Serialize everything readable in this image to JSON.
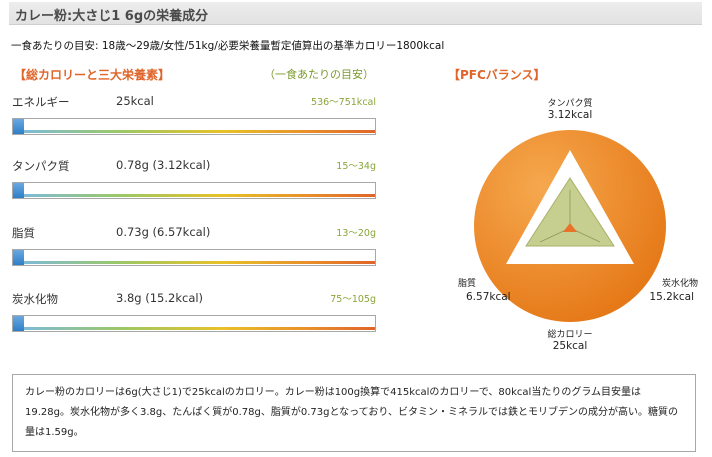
{
  "header": {
    "title": "カレー粉:大さじ1 6gの栄養成分"
  },
  "target_line": "一食あたりの目安: 18歳～29歳/女性/51kg/必要栄養量暫定値算出の基準カロリー1800kcal",
  "left_panel": {
    "title": "【総カロリーと三大栄養素】",
    "target_header": "（一食あたりの目安）",
    "rows": [
      {
        "label": "エネルギー",
        "value": "25kcal",
        "range": "536～751kcal",
        "fill": 0.03
      },
      {
        "label": "タンパク質",
        "value": "0.78g (3.12kcal)",
        "range": "15～34g",
        "fill": 0.03
      },
      {
        "label": "脂質",
        "value": "0.73g (6.57kcal)",
        "range": "13～20g",
        "fill": 0.03
      },
      {
        "label": "炭水化物",
        "value": "3.8g (15.2kcal)",
        "range": "75～105g",
        "fill": 0.03
      }
    ],
    "colors": {
      "fill": "#3b86cc",
      "gradient_start": "#7ab9e5",
      "gradient_end": "#e0652a"
    }
  },
  "pfc": {
    "title": "【PFCバランス】",
    "protein": {
      "label": "タンパク質",
      "value": "3.12kcal"
    },
    "fat": {
      "label": "脂質",
      "value": "6.57kcal"
    },
    "carb": {
      "label": "炭水化物",
      "value": "15.2kcal"
    },
    "total": {
      "label": "総カロリー",
      "value": "25kcal"
    },
    "colors": {
      "circle": "#f08a2a",
      "triangle_fill": "#c7cf90"
    }
  },
  "summary": "カレー粉のカロリーは6g(大さじ1)で25kcalのカロリー。カレー粉は100g換算で415kcalのカロリーで、80kcal当たりのグラム目安量は19.28g。炭水化物が多く3.8g、たんぱく質が0.78g、脂質が0.73gとなっており、ビタミン・ミネラルでは鉄とモリブデンの成分が高い。糖質の量は1.59g。"
}
